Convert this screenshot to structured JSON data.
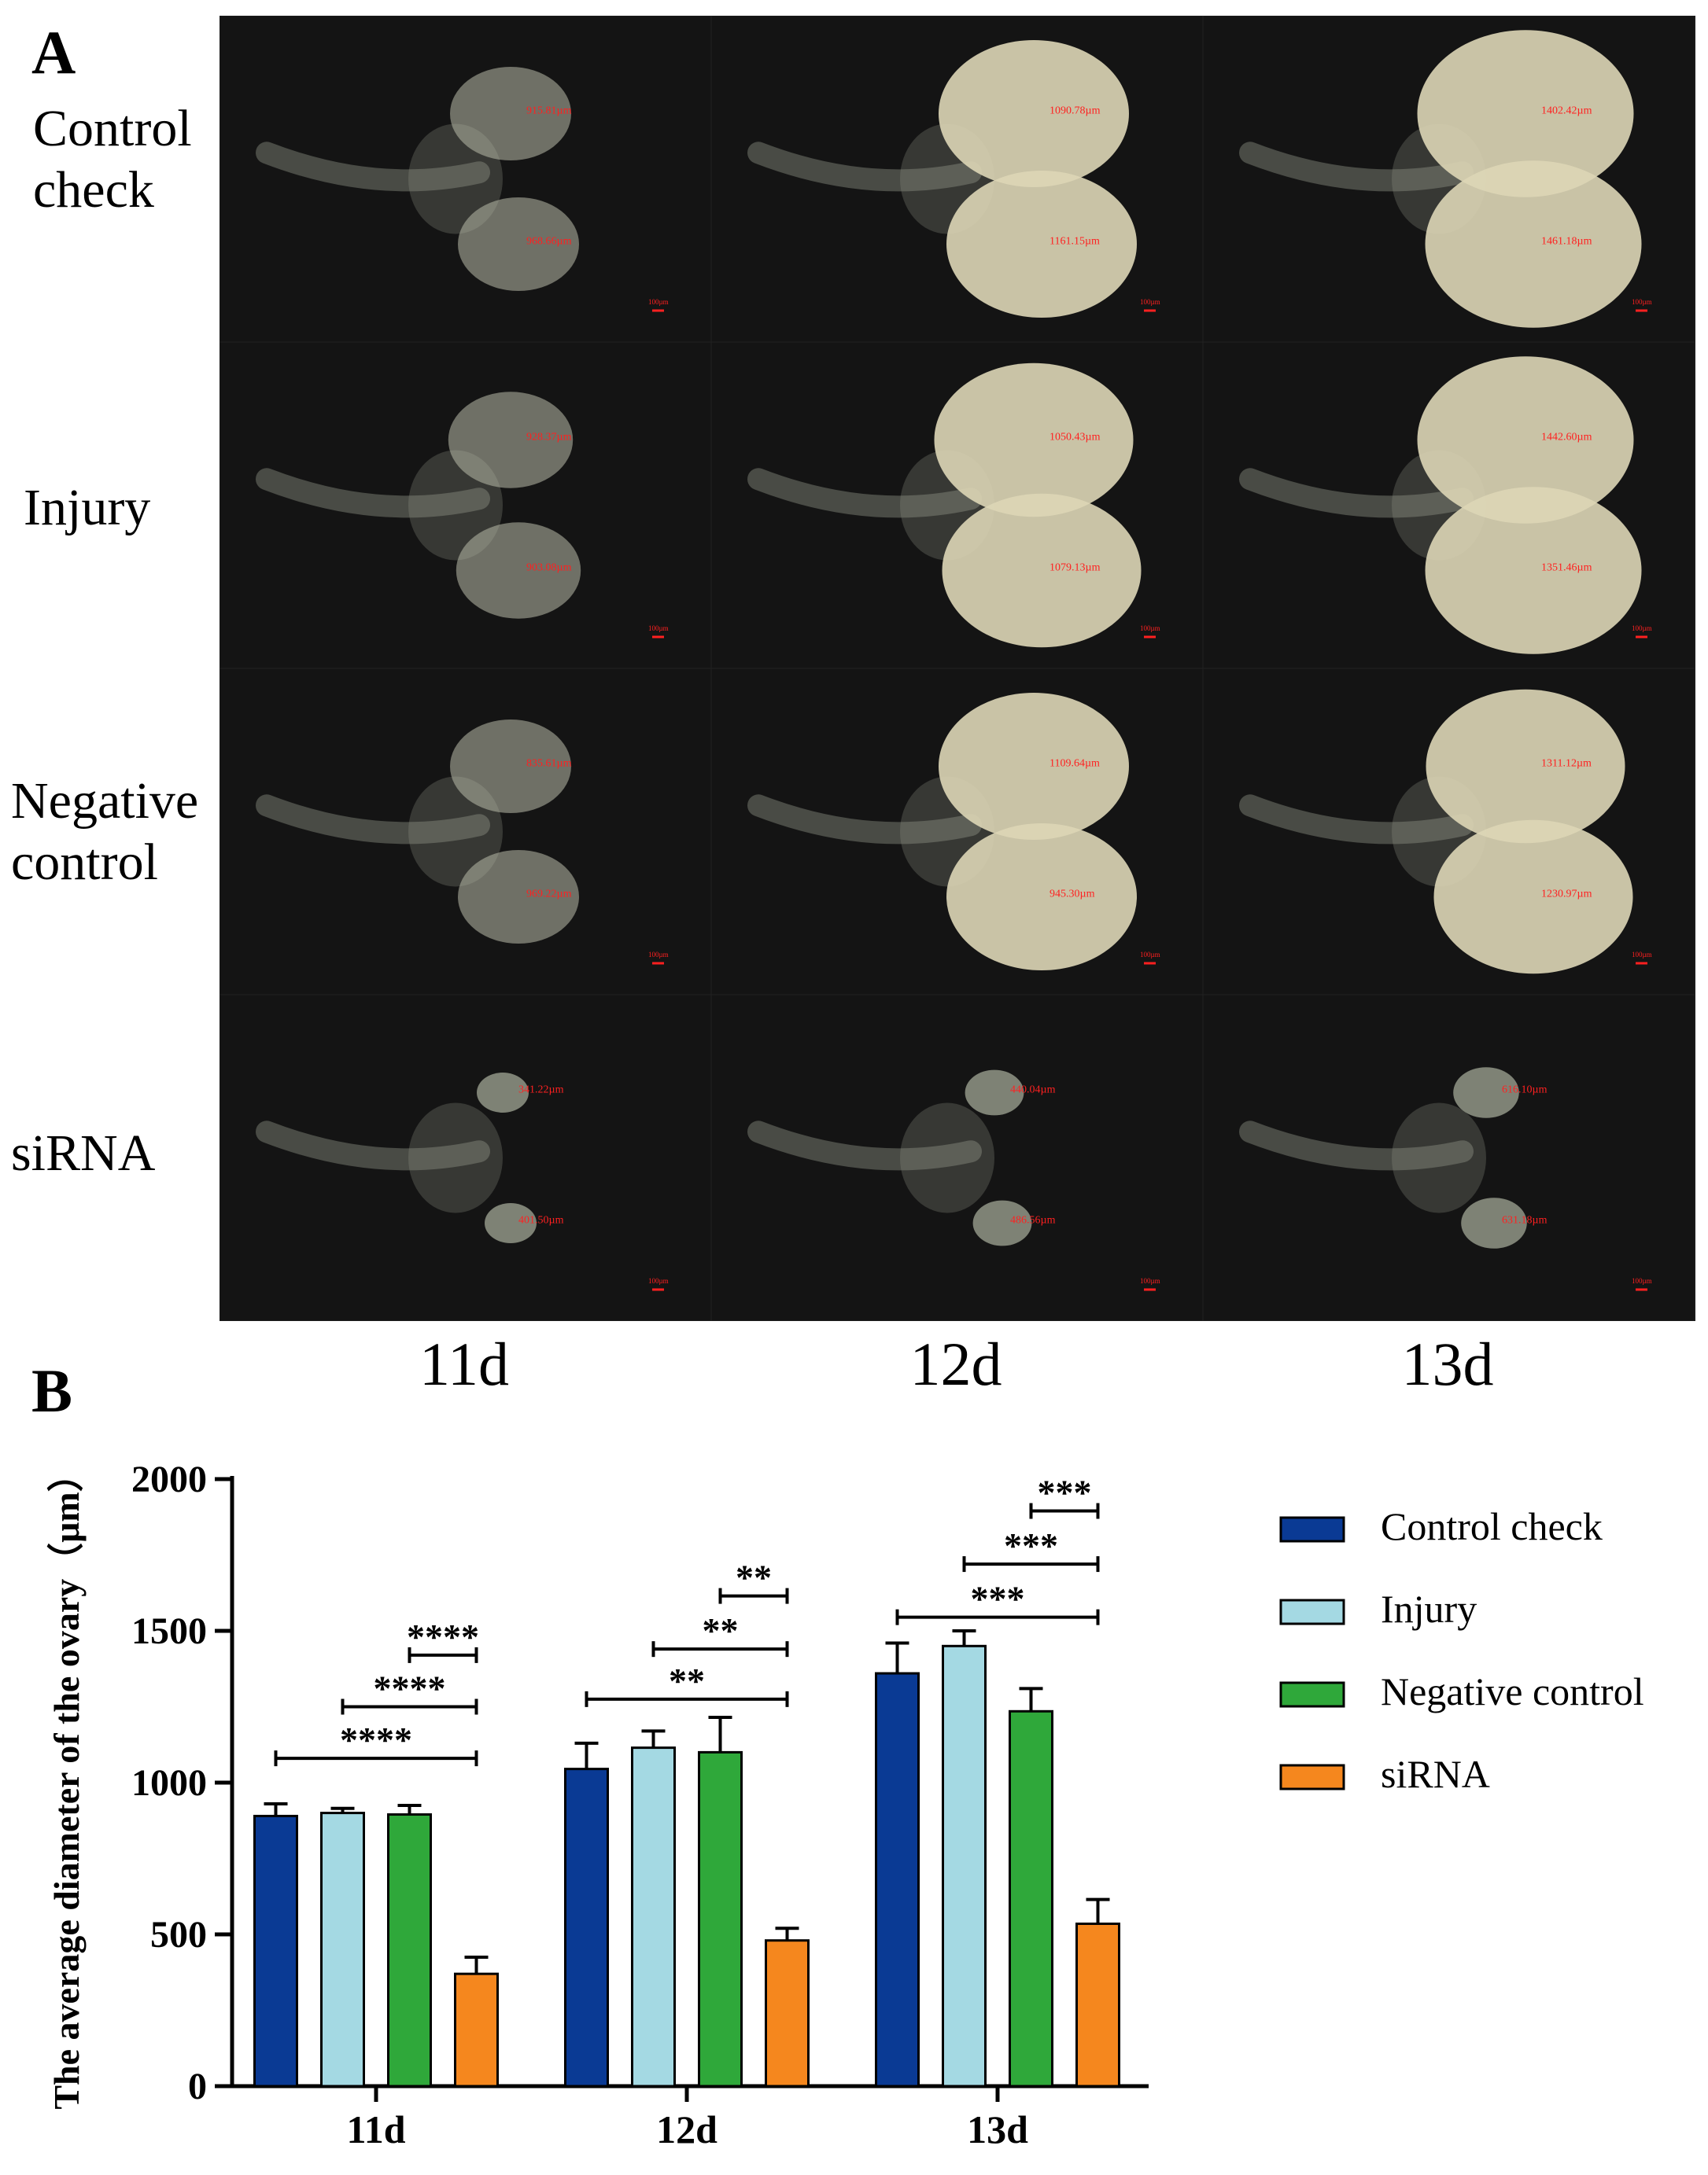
{
  "panelA": {
    "letter": "A",
    "rows": [
      {
        "label_lines": [
          "Control",
          "check"
        ]
      },
      {
        "label_lines": [
          "Injury"
        ]
      },
      {
        "label_lines": [
          "Negative",
          "control"
        ]
      },
      {
        "label_lines": [
          "siRNA"
        ]
      }
    ],
    "columns": [
      "11d",
      "12d",
      "13d"
    ],
    "measurements": [
      [
        "915.81µm",
        "968.66µm",
        "1090.78µm",
        "1161.15µm",
        "1402.42µm",
        "1461.18µm"
      ],
      [
        "928.37µm",
        "903.08µm",
        "1050.43µm",
        "1079.13µm",
        "1442.60µm",
        "1351.46µm"
      ],
      [
        "835.61µm",
        "969.22µm",
        "1109.64µm",
        "945.30µm",
        "1311.12µm",
        "1230.97µm"
      ],
      [
        "341.22µm",
        "401.50µm",
        "440.04µm",
        "486.56µm",
        "616.10µm",
        "631.18µm"
      ]
    ],
    "scale_label": "100µm",
    "colors": {
      "background": "#141414",
      "tissue": "#8a8e80",
      "ovary": "#ddd6b6",
      "annotation": "#ff2020"
    }
  },
  "panelB": {
    "letter": "B"
  },
  "chart_data": {
    "type": "bar",
    "categories": [
      "11d",
      "12d",
      "13d"
    ],
    "ylabel": "The average diameter of the ovary（μm）",
    "ylim": [
      0,
      2000
    ],
    "yticks": [
      0,
      500,
      1000,
      1500,
      2000
    ],
    "legend_position": "right",
    "series": [
      {
        "name": "Control check",
        "color": "#0a3a94",
        "values": [
          890,
          1045,
          1360
        ],
        "errors": [
          40,
          85,
          100
        ]
      },
      {
        "name": "Injury",
        "color": "#a4d9e3",
        "values": [
          900,
          1115,
          1450
        ],
        "errors": [
          15,
          55,
          50
        ]
      },
      {
        "name": "Negative control",
        "color": "#2fa83a",
        "values": [
          895,
          1100,
          1235
        ],
        "errors": [
          30,
          115,
          75
        ]
      },
      {
        "name": "siRNA",
        "color": "#f5871e",
        "values": [
          370,
          480,
          535
        ],
        "errors": [
          55,
          40,
          80
        ]
      }
    ],
    "significance": [
      {
        "group": 0,
        "from_series": 0,
        "to_series": 3,
        "y": 1080,
        "label": "****"
      },
      {
        "group": 0,
        "from_series": 1,
        "to_series": 3,
        "y": 1250,
        "label": "****"
      },
      {
        "group": 0,
        "from_series": 2,
        "to_series": 3,
        "y": 1420,
        "label": "****"
      },
      {
        "group": 1,
        "from_series": 0,
        "to_series": 3,
        "y": 1275,
        "label": "**"
      },
      {
        "group": 1,
        "from_series": 1,
        "to_series": 3,
        "y": 1440,
        "label": "**"
      },
      {
        "group": 1,
        "from_series": 2,
        "to_series": 3,
        "y": 1615,
        "label": "**"
      },
      {
        "group": 2,
        "from_series": 0,
        "to_series": 3,
        "y": 1545,
        "label": "***"
      },
      {
        "group": 2,
        "from_series": 1,
        "to_series": 3,
        "y": 1720,
        "label": "***"
      },
      {
        "group": 2,
        "from_series": 2,
        "to_series": 3,
        "y": 1895,
        "label": "***"
      }
    ]
  }
}
